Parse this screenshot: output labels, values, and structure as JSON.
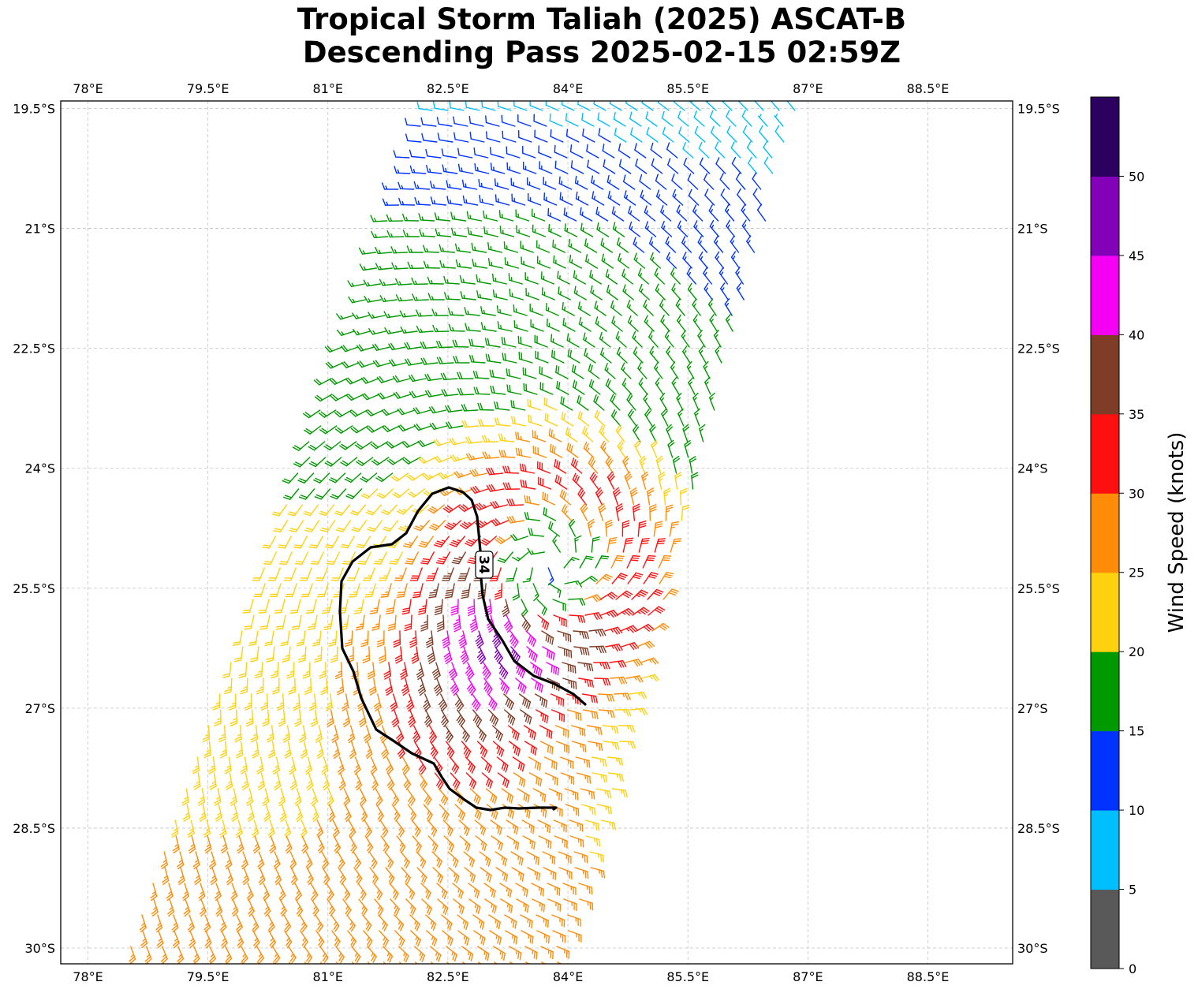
{
  "title": {
    "line1": "Tropical Storm Taliah (2025) ASCAT-B",
    "line2": "Descending Pass 2025-02-15 02:59Z"
  },
  "map": {
    "lon_ticks": [
      "78°E",
      "79.5°E",
      "81°E",
      "82.5°E",
      "84°E",
      "85.5°E",
      "87°E",
      "88.5°E"
    ],
    "lat_ticks": [
      "19.5°S",
      "21°S",
      "22.5°S",
      "24°S",
      "25.5°S",
      "27°S",
      "28.5°S",
      "30°S"
    ],
    "lon_range": [
      77.65,
      89.55
    ],
    "lat_range": [
      -19.4,
      -30.2
    ],
    "storm_center": {
      "lon": 83.8,
      "lat": -25.2
    },
    "contour_label": "34",
    "contour_level_knots": 34
  },
  "colorbar": {
    "label": "Wind Speed (knots)",
    "ticks": [
      "0",
      "5",
      "10",
      "15",
      "20",
      "25",
      "30",
      "35",
      "40",
      "45",
      "50"
    ],
    "bins": [
      {
        "min": 0,
        "max": 5,
        "color": "#595959"
      },
      {
        "min": 5,
        "max": 10,
        "color": "#00bfff"
      },
      {
        "min": 10,
        "max": 15,
        "color": "#0033ff"
      },
      {
        "min": 15,
        "max": 20,
        "color": "#009900"
      },
      {
        "min": 20,
        "max": 25,
        "color": "#ffd10f"
      },
      {
        "min": 25,
        "max": 30,
        "color": "#ff8c08"
      },
      {
        "min": 30,
        "max": 35,
        "color": "#ff1010"
      },
      {
        "min": 35,
        "max": 40,
        "color": "#7f3d27"
      },
      {
        "min": 40,
        "max": 45,
        "color": "#f500f5"
      },
      {
        "min": 45,
        "max": 50,
        "color": "#8400b8"
      },
      {
        "min": 50,
        "max": 55,
        "color": "#2b005e"
      }
    ]
  }
}
